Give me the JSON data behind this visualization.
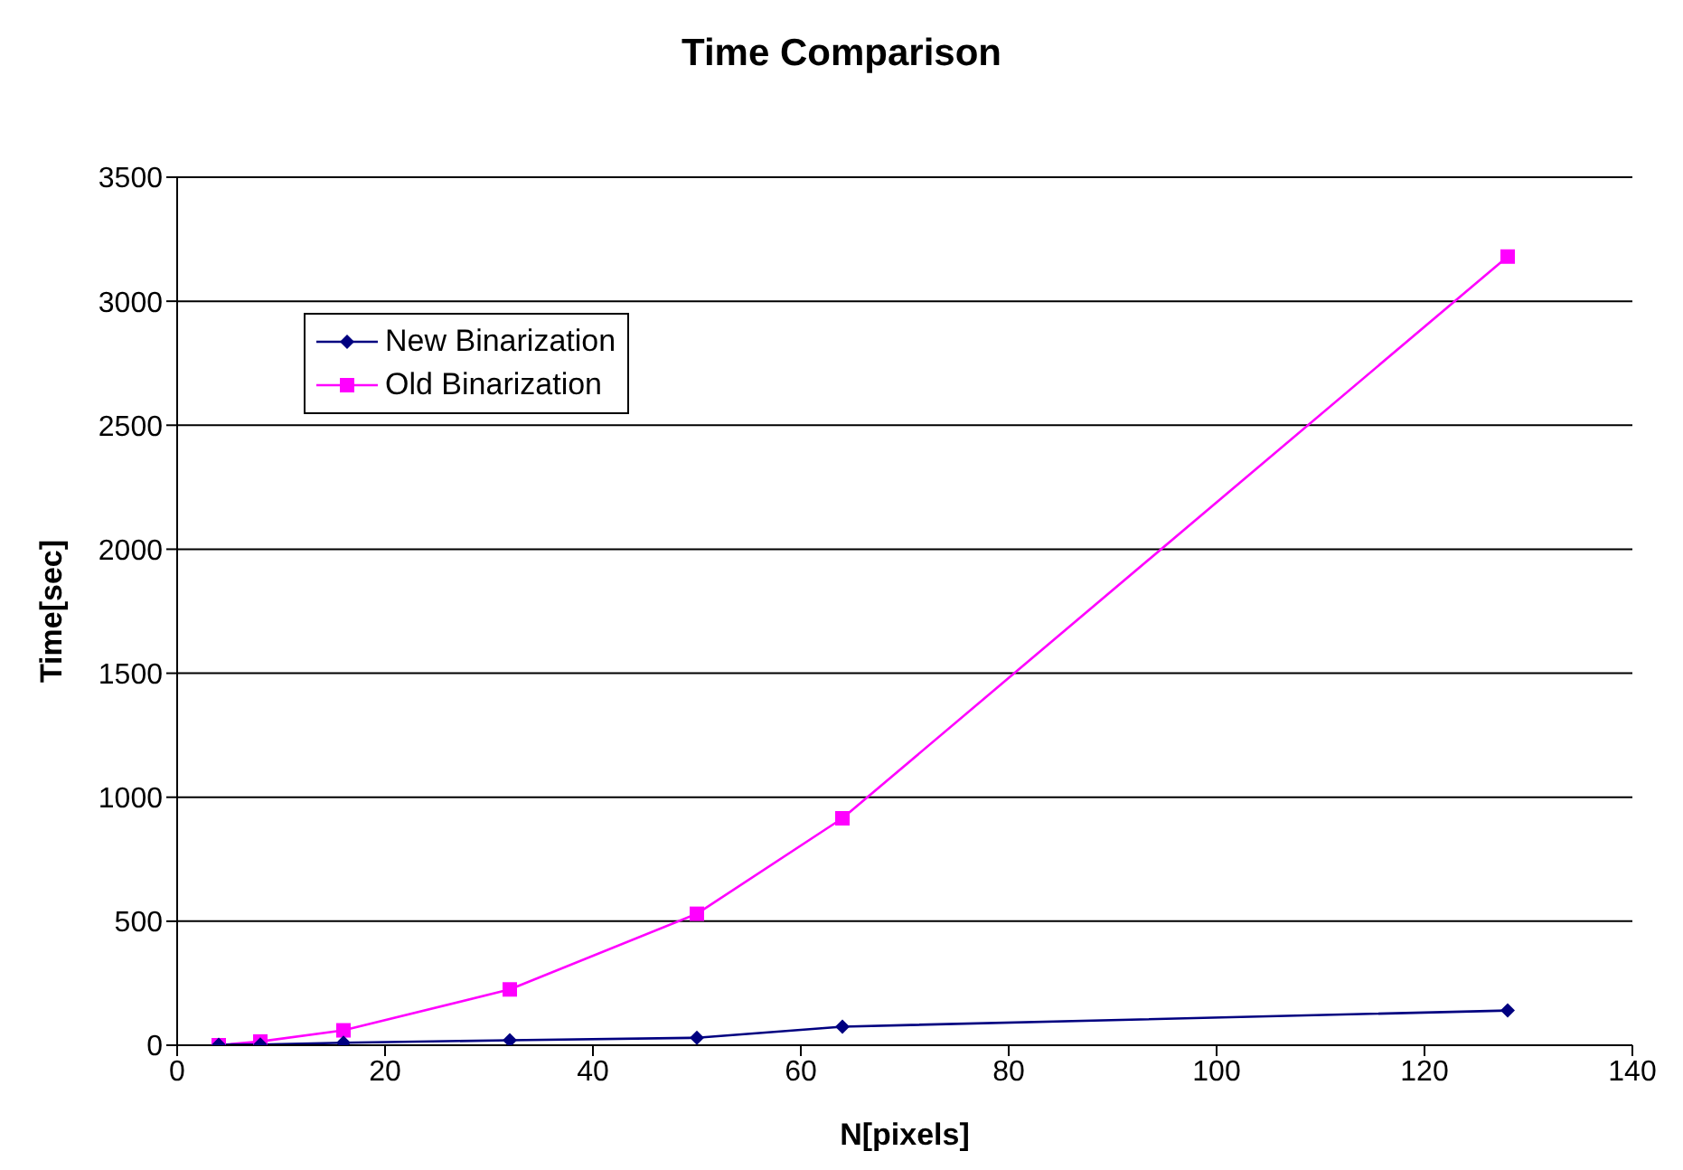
{
  "chart_data": {
    "type": "line",
    "title": "Time Comparison",
    "xlabel": "N[pixels]",
    "ylabel": "Time[sec]",
    "x": [
      4,
      8,
      16,
      32,
      50,
      64,
      128
    ],
    "series": [
      {
        "name": "New Binarization",
        "color": "#000080",
        "marker": "diamond",
        "values": [
          2,
          3,
          10,
          20,
          30,
          75,
          140
        ]
      },
      {
        "name": "Old Binarization",
        "color": "#ff00ff",
        "marker": "square",
        "values": [
          0,
          15,
          60,
          225,
          530,
          915,
          3180
        ]
      }
    ],
    "xlim": [
      0,
      140
    ],
    "xticks": [
      0,
      20,
      40,
      60,
      80,
      100,
      120,
      140
    ],
    "ylim": [
      0,
      3500
    ],
    "yticks": [
      0,
      500,
      1000,
      1500,
      2000,
      2500,
      3000,
      3500
    ],
    "grid": "y",
    "legend": "top left"
  }
}
